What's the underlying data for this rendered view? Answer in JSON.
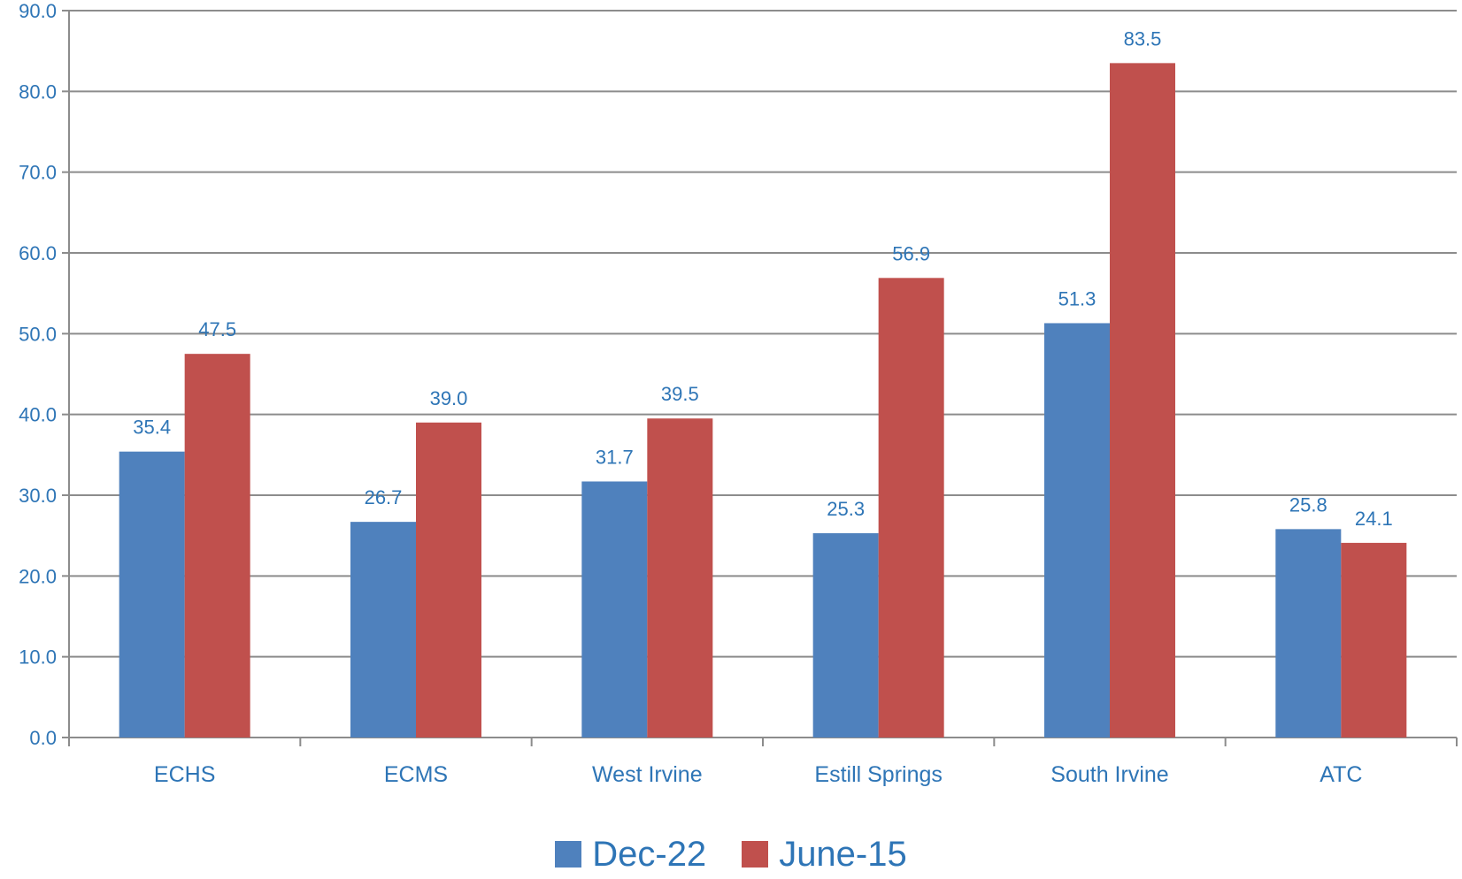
{
  "chart_data": {
    "type": "bar",
    "categories": [
      "ECHS",
      "ECMS",
      "West Irvine",
      "Estill Springs",
      "South Irvine",
      "ATC"
    ],
    "series": [
      {
        "name": "Dec-22",
        "color": "#4F81BD",
        "values": [
          35.4,
          26.7,
          31.7,
          25.3,
          51.3,
          25.8
        ]
      },
      {
        "name": "June-15",
        "color": "#C0504D",
        "values": [
          47.5,
          39.0,
          39.5,
          56.9,
          83.5,
          24.1
        ]
      }
    ],
    "ylim": [
      0,
      90
    ],
    "ytick_step": 10,
    "ytick_decimals": 1,
    "grid": true,
    "legend_position": "bottom",
    "label_color": "#2E75B6",
    "axis_color": "#8C8C8C"
  }
}
